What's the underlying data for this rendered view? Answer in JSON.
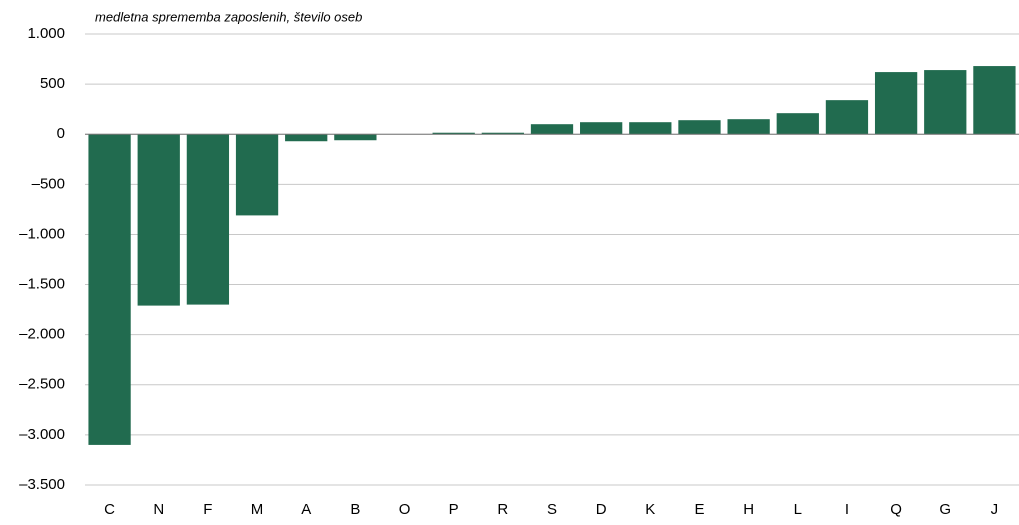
{
  "chart_data": {
    "type": "bar",
    "title": "medletna sprememba zaposlenih, število oseb",
    "categories": [
      "C",
      "N",
      "F",
      "M",
      "A",
      "B",
      "O",
      "P",
      "R",
      "S",
      "D",
      "K",
      "E",
      "H",
      "L",
      "I",
      "Q",
      "G",
      "J"
    ],
    "values": [
      -3100,
      -1710,
      -1700,
      -810,
      -70,
      -60,
      0,
      15,
      15,
      100,
      120,
      120,
      140,
      150,
      210,
      340,
      620,
      640,
      680
    ],
    "color": "#216b4f",
    "ylim": [
      -3500,
      1000
    ],
    "yticks": [
      {
        "value": -3500,
        "label": "–3.500"
      },
      {
        "value": -3000,
        "label": "–3.000"
      },
      {
        "value": -2500,
        "label": "–2.500"
      },
      {
        "value": -2000,
        "label": "–2.000"
      },
      {
        "value": -1500,
        "label": "–1.500"
      },
      {
        "value": -1000,
        "label": "–1.000"
      },
      {
        "value": -500,
        "label": "–500"
      },
      0,
      500,
      {
        "value": 1000,
        "label": "1.000"
      }
    ],
    "grid": true
  }
}
